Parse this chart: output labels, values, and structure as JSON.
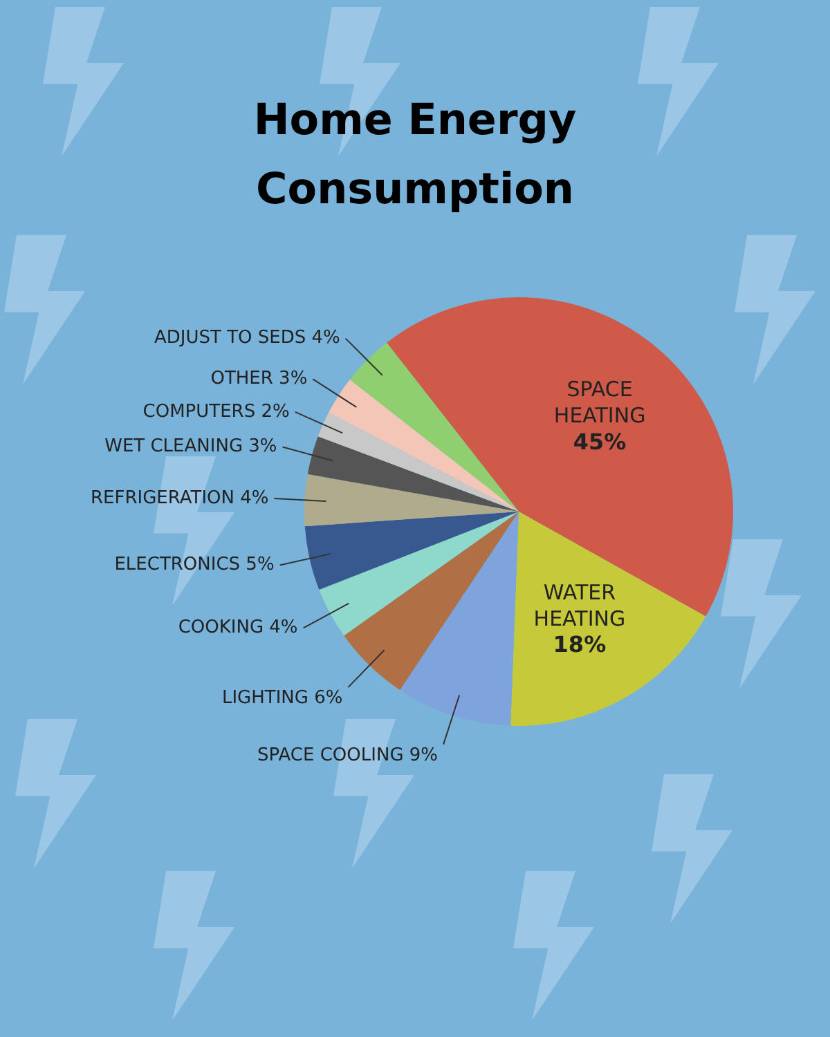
{
  "chart_data": {
    "type": "pie",
    "title": "Home Energy Consumption",
    "categories": [
      "SPACE HEATING",
      "WATER HEATING",
      "SPACE COOLING",
      "LIGHTING",
      "COOKING",
      "ELECTRONICS",
      "REFRIGERATION",
      "WET CLEANING",
      "COMPUTERS",
      "OTHER",
      "ADJUST TO SEDS"
    ],
    "values": [
      45,
      18,
      9,
      6,
      4,
      5,
      4,
      3,
      2,
      3,
      4
    ],
    "value_labels": [
      "45%",
      "18%",
      "9%",
      "6%",
      "4%",
      "5%",
      "4%",
      "3%",
      "2%",
      "3%",
      "4%"
    ],
    "colors": [
      "#d05a4a",
      "#c5c93a",
      "#7fa3dc",
      "#b06f45",
      "#8fd8cc",
      "#37598f",
      "#b0ab8c",
      "#555555",
      "#c8c8c8",
      "#f4c6b8",
      "#8fcf6f"
    ],
    "legend": false
  }
}
